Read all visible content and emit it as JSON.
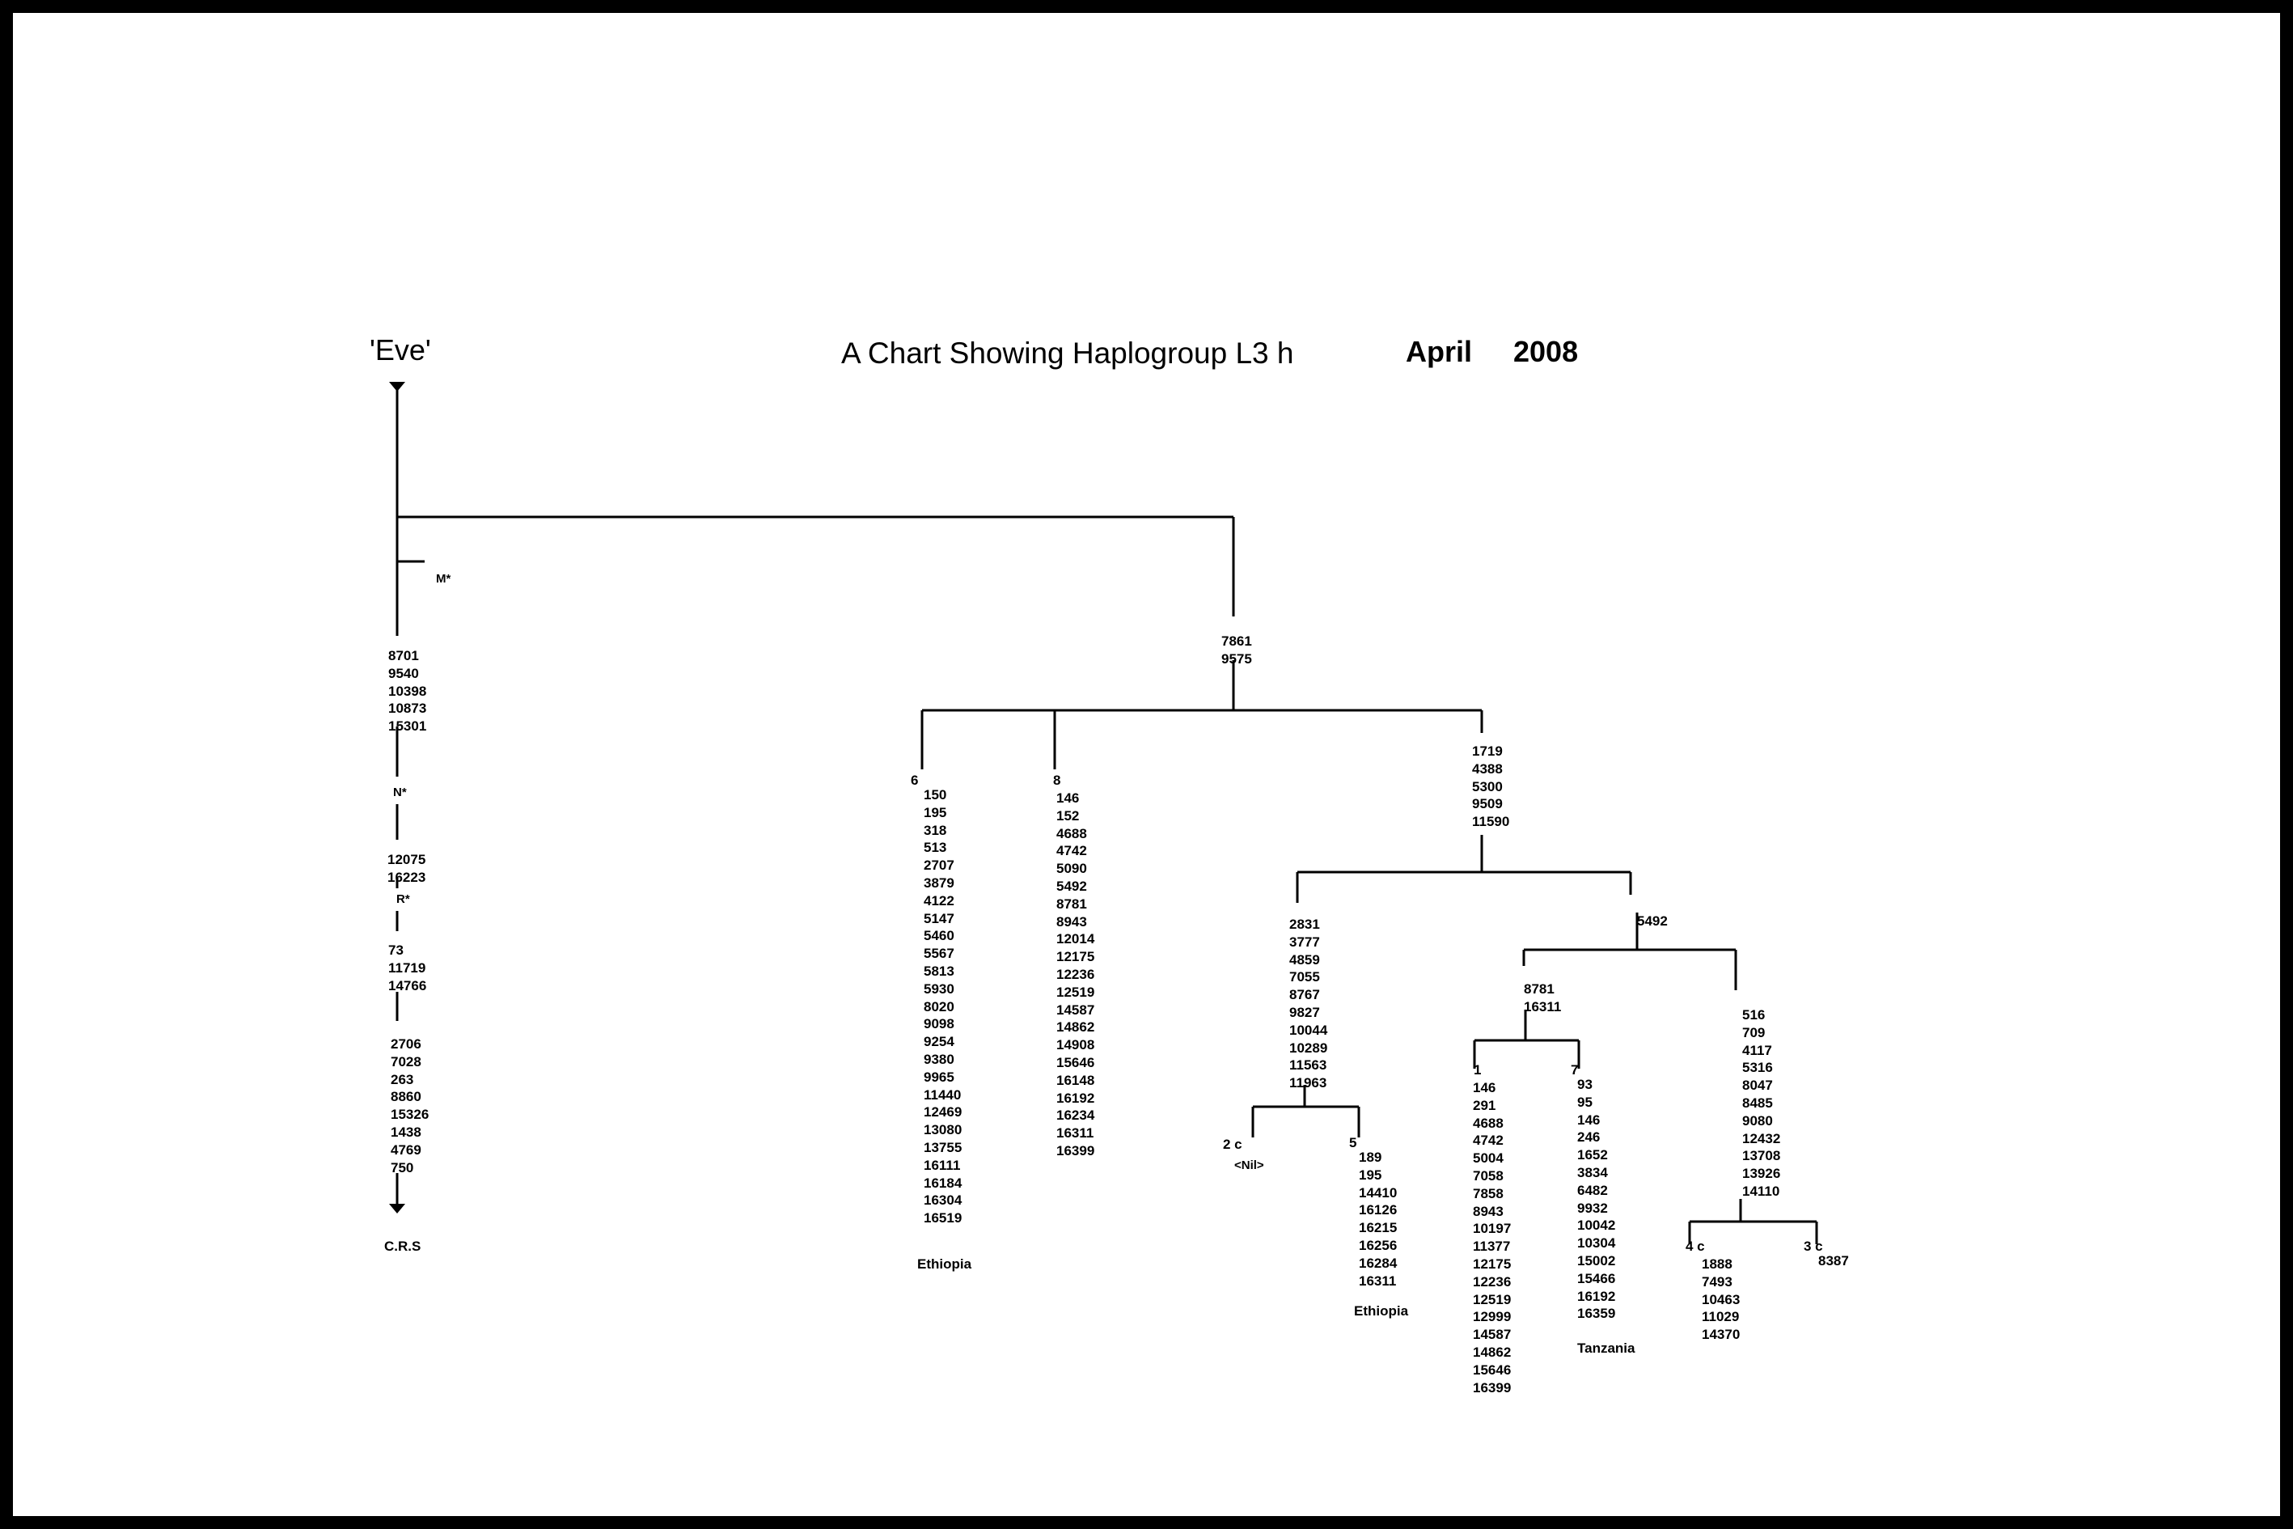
{
  "header": {
    "root_label": "'Eve'",
    "title": "A Chart Showing Haplogroup L3 h",
    "month": "April",
    "year": "2008"
  },
  "trunk": {
    "m_label": "M*",
    "seg1": [
      "8701",
      "9540",
      "10398",
      "10873",
      "15301"
    ],
    "n_label": "N*",
    "seg2": [
      "12075",
      "16223"
    ],
    "r_label": "R*",
    "seg3": [
      "73",
      "11719",
      "14766"
    ],
    "seg4": [
      "2706",
      "7028",
      "263",
      "8860",
      "15326",
      "1438",
      "4769",
      "750"
    ],
    "end_label": "C.R.S"
  },
  "l3": {
    "root_mutations": [
      "7861",
      "9575"
    ],
    "branch6": {
      "count": "6",
      "mutations": [
        "150",
        "195",
        "318",
        "513",
        "2707",
        "3879",
        "4122",
        "5147",
        "5460",
        "5567",
        "5813",
        "5930",
        "8020",
        "9098",
        "9254",
        "9380",
        "9965",
        "11440",
        "12469",
        "13080",
        "13755",
        "16111",
        "16184",
        "16304",
        "16519"
      ],
      "region": "Ethiopia"
    },
    "branch8": {
      "count": "8",
      "mutations": [
        "146",
        "152",
        "4688",
        "4742",
        "5090",
        "5492",
        "8781",
        "8943",
        "12014",
        "12175",
        "12236",
        "12519",
        "14587",
        "14862",
        "14908",
        "15646",
        "16148",
        "16192",
        "16234",
        "16311",
        "16399"
      ]
    },
    "l3h_mutations": [
      "1719",
      "4388",
      "5300",
      "9509",
      "11590"
    ],
    "left_sub": {
      "mutations": [
        "2831",
        "3777",
        "4859",
        "7055",
        "8767",
        "9827",
        "10044",
        "10289",
        "11563",
        "11963"
      ],
      "branch2c": {
        "count": "2 c",
        "note": "<Nil>"
      },
      "branch5": {
        "count": "5",
        "mutations": [
          "189",
          "195",
          "14410",
          "16126",
          "16215",
          "16256",
          "16284",
          "16311"
        ],
        "region": "Ethiopia"
      }
    },
    "right_sub": {
      "mutation": "5492",
      "sub_a": {
        "mutations": [
          "8781",
          "16311"
        ],
        "branch1": {
          "count": "1",
          "mutations": [
            "146",
            "291",
            "4688",
            "4742",
            "5004",
            "7058",
            "7858",
            "8943",
            "10197",
            "11377",
            "12175",
            "12236",
            "12519",
            "12999",
            "14587",
            "14862",
            "15646",
            "16399"
          ]
        },
        "branch7": {
          "count": "7",
          "mutations": [
            "93",
            "95",
            "146",
            "246",
            "1652",
            "3834",
            "6482",
            "9932",
            "10042",
            "10304",
            "15002",
            "15466",
            "16192",
            "16359"
          ],
          "region": "Tanzania"
        }
      },
      "sub_b": {
        "mutations": [
          "516",
          "709",
          "4117",
          "5316",
          "8047",
          "8485",
          "9080",
          "12432",
          "13708",
          "13926",
          "14110"
        ],
        "branch4c": {
          "count": "4 c",
          "mutations": [
            "1888",
            "7493",
            "10463",
            "11029",
            "14370"
          ]
        },
        "branch3c": {
          "count": "3 c",
          "mutations": [
            "8387"
          ]
        }
      }
    }
  }
}
